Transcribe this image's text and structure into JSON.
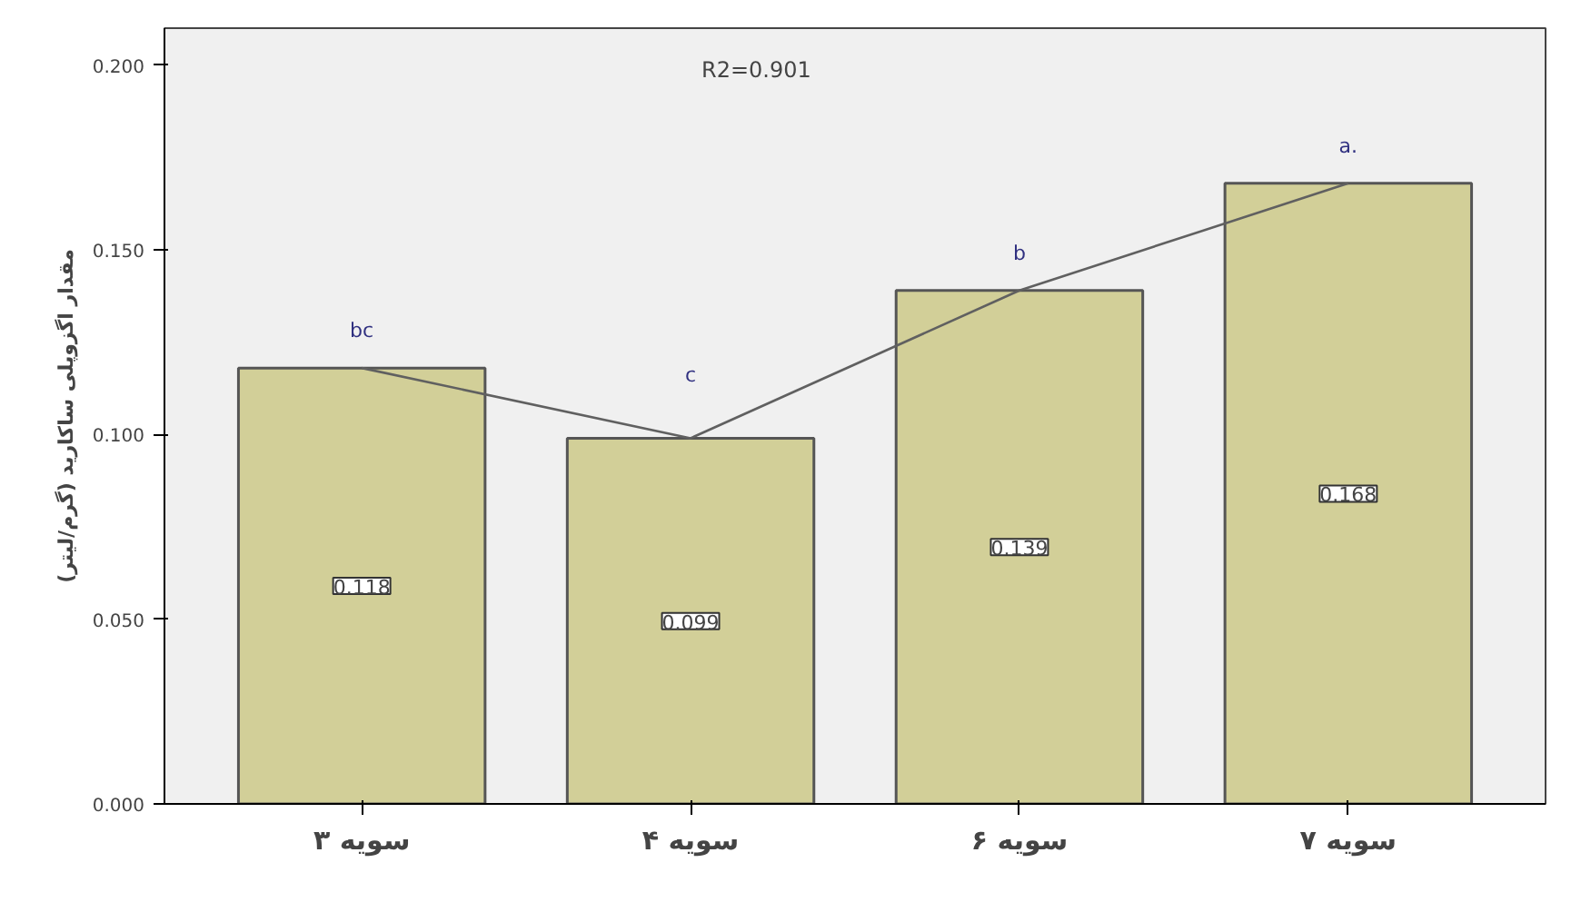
{
  "chart_data": {
    "type": "bar",
    "ylabel": "مقدار اگزوپلی ساکارید (گرم/لیتر)",
    "categories": [
      "سویه ۳",
      "سویه ۴",
      "سویه ۶",
      "سویه ۷"
    ],
    "series": [
      {
        "color": "#d2cf98",
        "values": [
          0.118,
          0.099,
          0.139,
          0.168
        ],
        "value_labels": [
          "0.118",
          "0.099",
          "0.139",
          "0.168"
        ]
      },
      {
        "type": "line",
        "color": "#606060",
        "values": [
          0.118,
          0.099,
          0.139,
          0.168
        ]
      }
    ],
    "ylim": [
      0,
      0.21
    ],
    "yticks": [
      {
        "value": 0,
        "label": "0.000"
      },
      {
        "value": 0.05,
        "label": "0.050"
      },
      {
        "value": 0.1,
        "label": "0.100"
      },
      {
        "value": 0.15,
        "label": "0.150"
      },
      {
        "value": 0.2,
        "label": "0.200"
      }
    ],
    "annotations": [
      "R2=0.901",
      "bc",
      "c",
      "b",
      "a."
    ],
    "grid": false
  }
}
